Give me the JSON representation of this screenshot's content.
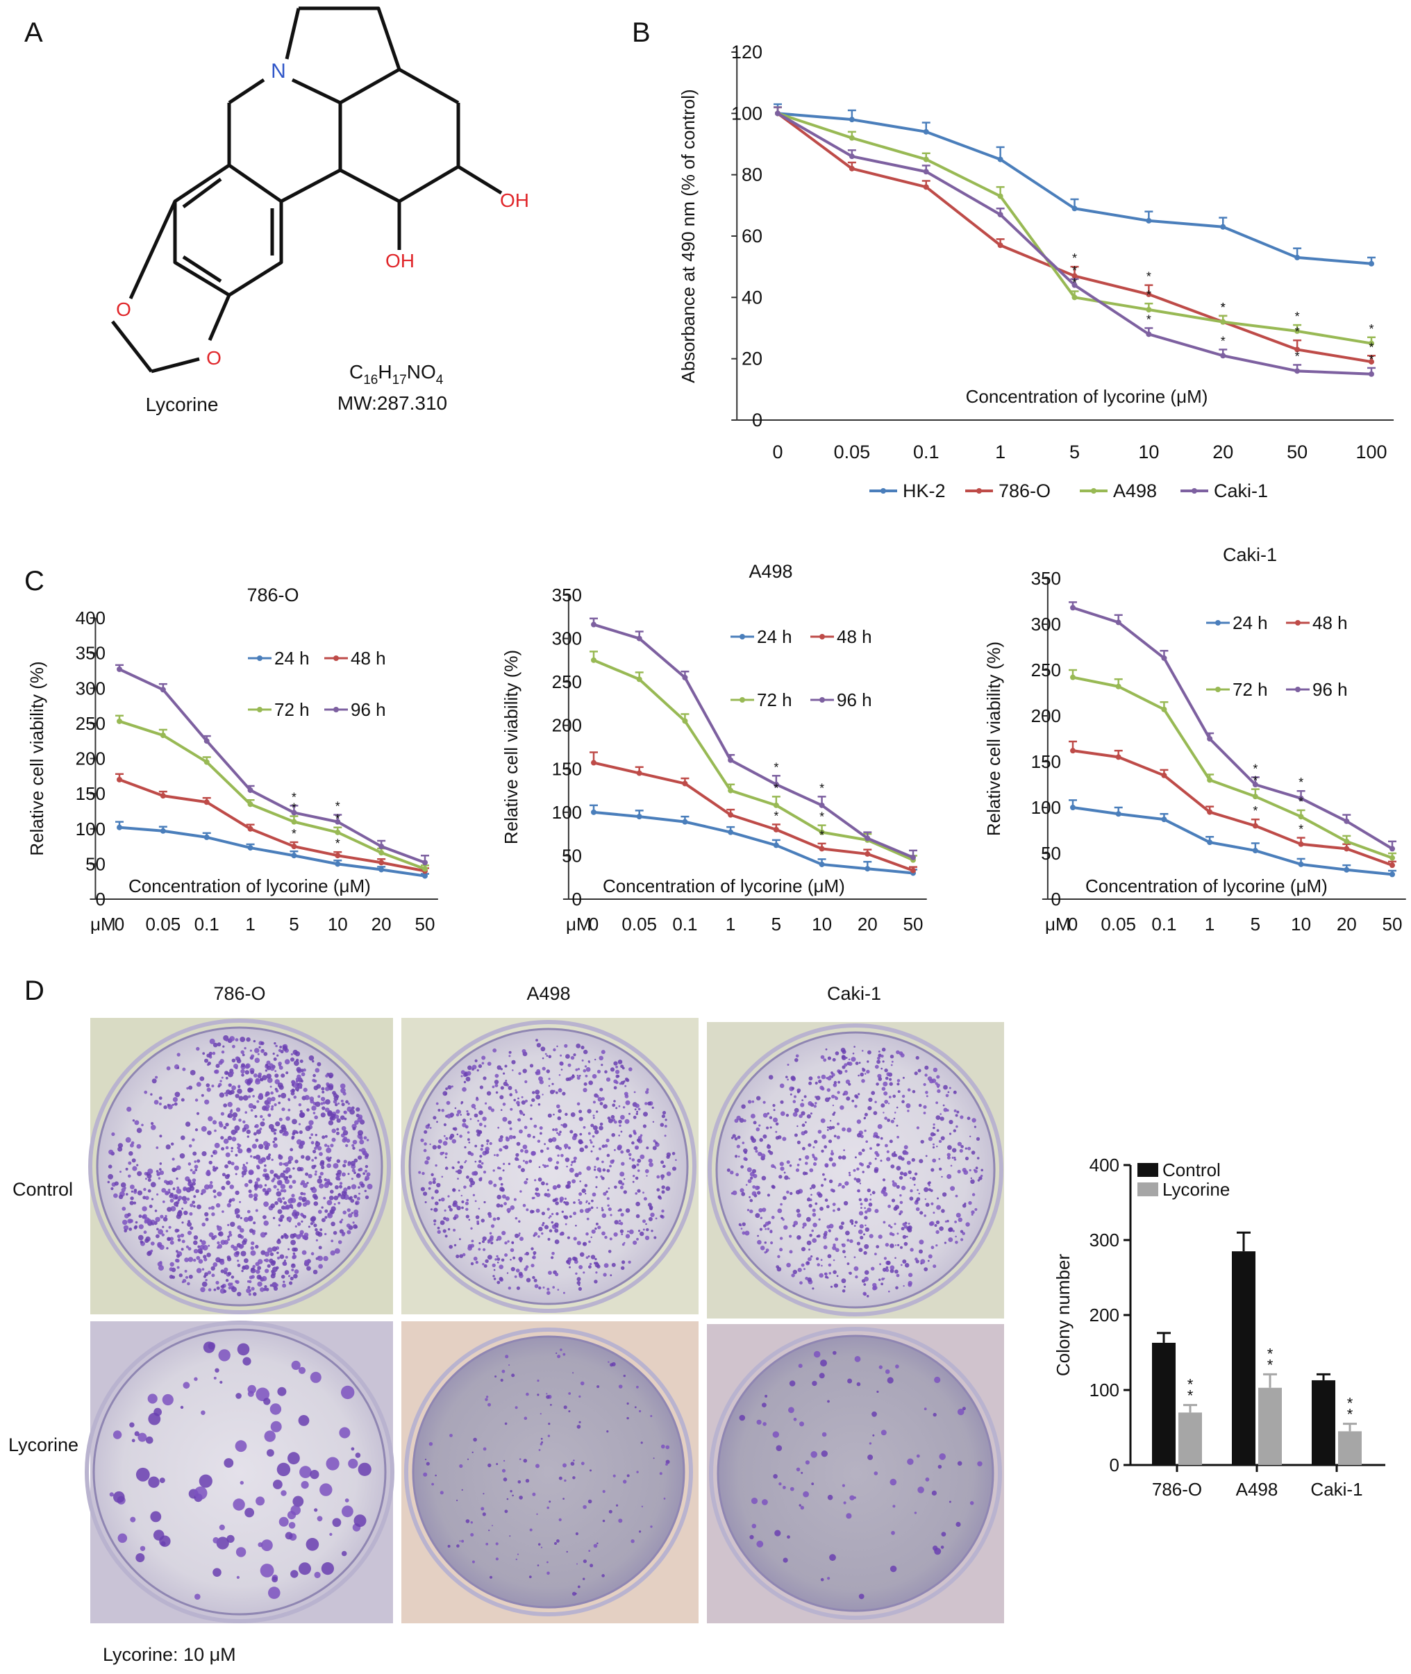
{
  "panel_letters": [
    "A",
    "B",
    "C",
    "D"
  ],
  "molecule": {
    "name": "Lycorine",
    "formula": {
      "C": "C",
      "n1": "16",
      "H": "H",
      "n2": "17",
      "NO": "NO",
      "n3": "4"
    },
    "mw": "MW:287.310",
    "atoms": {
      "N": "N",
      "OH1": "OH",
      "OH2": "OH",
      "O1": "O",
      "O2": "O"
    }
  },
  "colors": {
    "blue": "#4a7ebb",
    "red": "#be4b48",
    "green": "#98b954",
    "purple": "#7d60a0",
    "black": "#111111",
    "gray": "#a6a6a6",
    "dishBg": "#d7d8c0"
  },
  "chart_data": [
    {
      "id": "B",
      "type": "line",
      "categories": [
        "0",
        "0.05",
        "0.1",
        "1",
        "5",
        "10",
        "20",
        "50",
        "100"
      ],
      "ylabel": "Absorbance at 490 nm (% of control)",
      "xlabel": "Concentration of lycorine (μM)",
      "ylim": [
        0,
        120
      ],
      "yticks": [
        "0",
        "20",
        "40",
        "60",
        "80",
        "100",
        "120"
      ],
      "legend_position": "bottom",
      "series": [
        {
          "name": "HK-2",
          "color": "#4a7ebb",
          "values": [
            100,
            98,
            94,
            85,
            69,
            65,
            63,
            53,
            51
          ],
          "errors": [
            3,
            3,
            3,
            4,
            3,
            3,
            3,
            3,
            2
          ]
        },
        {
          "name": "786-O",
          "color": "#be4b48",
          "values": [
            100,
            82,
            76,
            57,
            47,
            41,
            32,
            23,
            19
          ],
          "errors": [
            2,
            2,
            2,
            2,
            3,
            3,
            2,
            3,
            2
          ]
        },
        {
          "name": "A498",
          "color": "#98b954",
          "values": [
            100,
            92,
            85,
            73,
            40,
            36,
            32,
            29,
            25
          ],
          "errors": [
            2,
            2,
            2,
            3,
            2,
            2,
            2,
            2,
            2
          ]
        },
        {
          "name": "Caki-1",
          "color": "#7d60a0",
          "values": [
            100,
            86,
            81,
            67,
            44,
            28,
            21,
            16,
            15
          ],
          "errors": [
            2,
            2,
            2,
            2,
            2,
            2,
            2,
            2,
            2
          ]
        }
      ]
    },
    {
      "id": "C1",
      "type": "line",
      "title": "786-O",
      "categories": [
        "0",
        "0.05",
        "0.1",
        "1",
        "5",
        "10",
        "20",
        "50"
      ],
      "unit_label": "μM",
      "ylabel": "Relative cell viability (%)",
      "xlabel": "Concentration of lycorine (μM)",
      "ylim": [
        0,
        400
      ],
      "yticks": [
        "0",
        "50",
        "100",
        "150",
        "200",
        "250",
        "300",
        "350",
        "400"
      ],
      "series": [
        {
          "name": "24 h",
          "color": "#4a7ebb",
          "values": [
            102,
            97,
            88,
            73,
            62,
            50,
            42,
            33
          ],
          "errors": [
            8,
            6,
            6,
            5,
            6,
            5,
            4,
            3
          ]
        },
        {
          "name": "48 h",
          "color": "#be4b48",
          "values": [
            170,
            147,
            138,
            100,
            75,
            62,
            52,
            40
          ],
          "errors": [
            8,
            6,
            6,
            6,
            6,
            5,
            5,
            4
          ]
        },
        {
          "name": "72 h",
          "color": "#98b954",
          "values": [
            253,
            233,
            195,
            135,
            110,
            95,
            66,
            43
          ],
          "errors": [
            8,
            8,
            7,
            6,
            8,
            7,
            6,
            5
          ]
        },
        {
          "name": "96 h",
          "color": "#7d60a0",
          "values": [
            327,
            298,
            225,
            155,
            123,
            110,
            75,
            52
          ],
          "errors": [
            6,
            8,
            7,
            6,
            10,
            10,
            8,
            10
          ]
        }
      ]
    },
    {
      "id": "C2",
      "type": "line",
      "title": "A498",
      "categories": [
        "0",
        "0.05",
        "0.1",
        "1",
        "5",
        "10",
        "20",
        "50"
      ],
      "unit_label": "μM",
      "ylabel": "Relative cell viability (%)",
      "xlabel": "Concentration of lycorine (μM)",
      "ylim": [
        0,
        350
      ],
      "yticks": [
        "0",
        "50",
        "100",
        "150",
        "200",
        "250",
        "300",
        "350"
      ],
      "series": [
        {
          "name": "24 h",
          "color": "#4a7ebb",
          "values": [
            100,
            95,
            89,
            77,
            62,
            40,
            35,
            30
          ],
          "errors": [
            8,
            7,
            6,
            6,
            6,
            6,
            8,
            4
          ]
        },
        {
          "name": "48 h",
          "color": "#be4b48",
          "values": [
            157,
            145,
            133,
            97,
            80,
            58,
            52,
            33
          ],
          "errors": [
            12,
            7,
            6,
            6,
            6,
            6,
            5,
            4
          ]
        },
        {
          "name": "72 h",
          "color": "#98b954",
          "values": [
            275,
            253,
            205,
            125,
            108,
            77,
            68,
            45
          ],
          "errors": [
            10,
            8,
            8,
            7,
            10,
            8,
            7,
            5
          ]
        },
        {
          "name": "96 h",
          "color": "#7d60a0",
          "values": [
            316,
            300,
            255,
            160,
            132,
            108,
            70,
            48
          ],
          "errors": [
            7,
            8,
            7,
            6,
            10,
            10,
            7,
            8
          ]
        }
      ]
    },
    {
      "id": "C3",
      "type": "line",
      "title": "Caki-1",
      "categories": [
        "0",
        "0.05",
        "0.1",
        "1",
        "5",
        "10",
        "20",
        "50"
      ],
      "unit_label": "μM",
      "ylabel": "Relative cell viability (%)",
      "xlabel": "Concentration of lycorine (μM)",
      "ylim": [
        0,
        350
      ],
      "yticks": [
        "0",
        "50",
        "100",
        "150",
        "200",
        "250",
        "300",
        "350"
      ],
      "series": [
        {
          "name": "24 h",
          "color": "#4a7ebb",
          "values": [
            100,
            93,
            87,
            62,
            53,
            38,
            32,
            27
          ],
          "errors": [
            8,
            7,
            6,
            6,
            8,
            6,
            5,
            4
          ]
        },
        {
          "name": "48 h",
          "color": "#be4b48",
          "values": [
            162,
            155,
            135,
            95,
            80,
            60,
            55,
            37
          ],
          "errors": [
            10,
            7,
            6,
            6,
            7,
            7,
            5,
            4
          ]
        },
        {
          "name": "72 h",
          "color": "#98b954",
          "values": [
            242,
            232,
            207,
            130,
            112,
            90,
            63,
            45
          ],
          "errors": [
            8,
            8,
            8,
            6,
            8,
            7,
            6,
            5
          ]
        },
        {
          "name": "96 h",
          "color": "#7d60a0",
          "values": [
            318,
            302,
            263,
            175,
            125,
            110,
            85,
            55
          ],
          "errors": [
            6,
            8,
            8,
            6,
            8,
            8,
            7,
            8
          ]
        }
      ]
    },
    {
      "id": "D_bar",
      "type": "bar",
      "categories": [
        "786-O",
        "A498",
        "Caki-1"
      ],
      "ylabel": "Colony number",
      "ylim": [
        0,
        400
      ],
      "yticks": [
        "0",
        "100",
        "200",
        "300",
        "400"
      ],
      "legend_position": "top-left",
      "series": [
        {
          "name": "Control",
          "color": "#111111",
          "values": [
            163,
            285,
            113
          ],
          "errors": [
            13,
            25,
            8
          ]
        },
        {
          "name": "Lycorine",
          "color": "#a6a6a6",
          "values": [
            70,
            103,
            45
          ],
          "errors": [
            10,
            18,
            10
          ]
        }
      ]
    }
  ],
  "panel_d": {
    "columns": [
      "786-O",
      "A498",
      "Caki-1"
    ],
    "rows": [
      "Control",
      "Lycorine"
    ],
    "footnote": "Lycorine: 10 μM"
  }
}
